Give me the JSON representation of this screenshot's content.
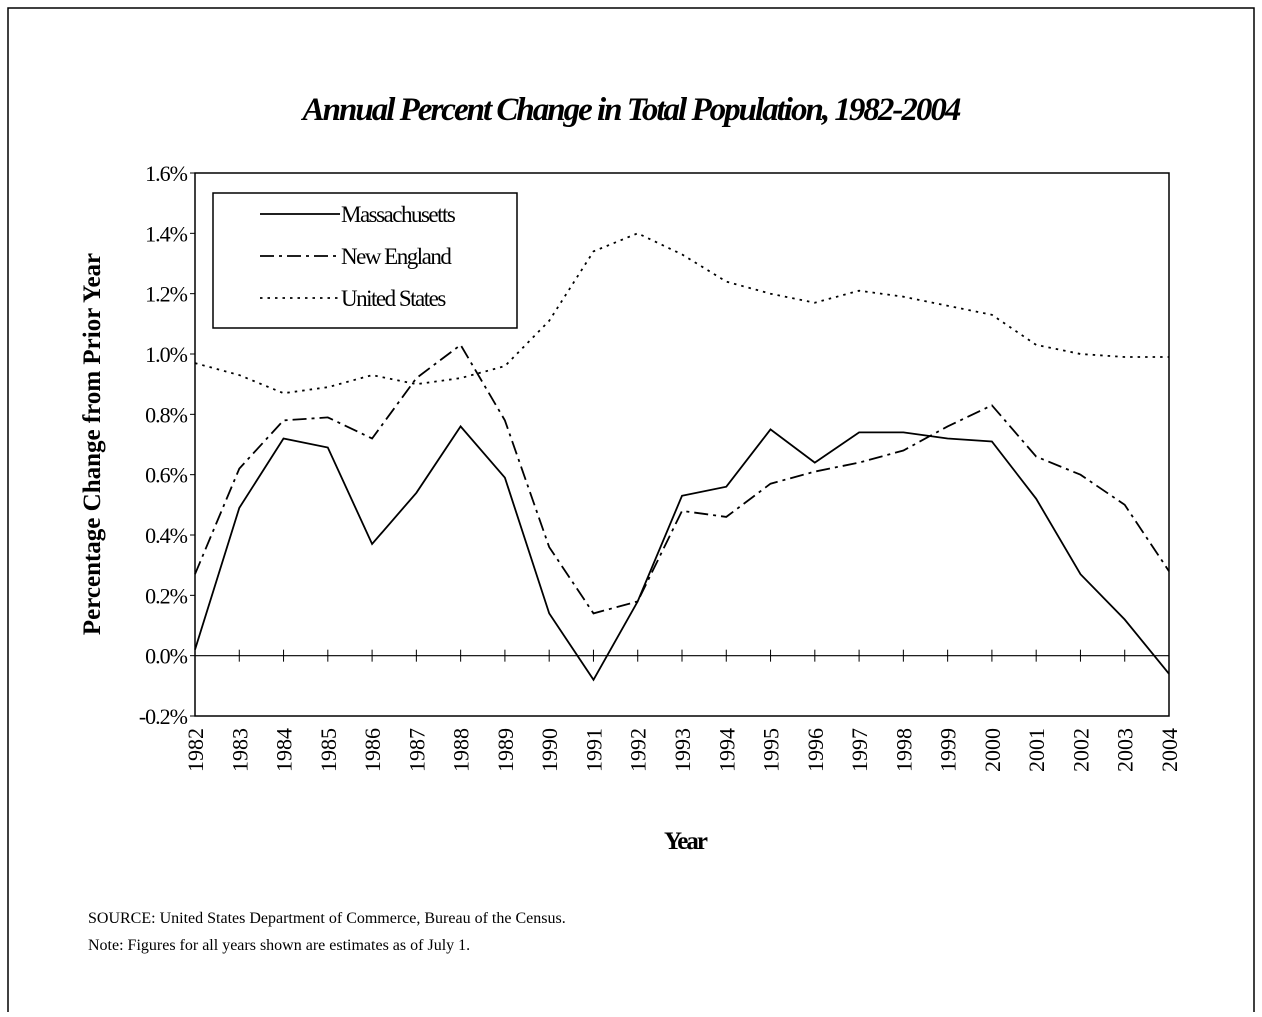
{
  "chart_data": {
    "type": "line",
    "title": "Annual Percent Change in Total Population, 1982-2004",
    "x_label": "Year",
    "y_label": "Percentage Change from Prior Year",
    "categories": [
      "1982",
      "1983",
      "1984",
      "1985",
      "1986",
      "1987",
      "1988",
      "1989",
      "1990",
      "1991",
      "1992",
      "1993",
      "1994",
      "1995",
      "1996",
      "1997",
      "1998",
      "1999",
      "2000",
      "2001",
      "2002",
      "2003",
      "2004"
    ],
    "series": [
      {
        "name": "Massachusetts",
        "color": "#000000",
        "dash": "solid",
        "values": [
          0.02,
          0.49,
          0.72,
          0.69,
          0.37,
          0.54,
          0.76,
          0.59,
          0.14,
          -0.08,
          0.18,
          0.53,
          0.56,
          0.75,
          0.64,
          0.74,
          0.74,
          0.72,
          0.71,
          0.52,
          0.27,
          0.12,
          -0.06
        ]
      },
      {
        "name": "New England",
        "color": "#000000",
        "dash": "dashdot",
        "values": [
          0.27,
          0.62,
          0.78,
          0.79,
          0.72,
          0.92,
          1.03,
          0.78,
          0.36,
          0.14,
          0.18,
          0.48,
          0.46,
          0.57,
          0.61,
          0.64,
          0.68,
          0.76,
          0.83,
          0.66,
          0.6,
          0.5,
          0.28
        ]
      },
      {
        "name": "United States",
        "color": "#000000",
        "dash": "dotted",
        "values": [
          0.97,
          0.93,
          0.87,
          0.89,
          0.93,
          0.9,
          0.92,
          0.96,
          1.11,
          1.34,
          1.4,
          1.33,
          1.24,
          1.2,
          1.17,
          1.21,
          1.19,
          1.16,
          1.13,
          1.03,
          1.0,
          0.99,
          0.99
        ]
      }
    ],
    "ylim": [
      -0.2,
      1.6
    ],
    "yticks": [
      {
        "value": -0.2,
        "label": "-0.2%"
      },
      {
        "value": 0,
        "label": "0.0%"
      },
      {
        "value": 0.2,
        "label": "0.2%"
      },
      {
        "value": 0.4,
        "label": "0.4%"
      },
      {
        "value": 0.6,
        "label": "0.6%"
      },
      {
        "value": 0.8,
        "label": "0.8%"
      },
      {
        "value": 1.0,
        "label": "1.0%"
      },
      {
        "value": 1.2,
        "label": "1.2%"
      },
      {
        "value": 1.4,
        "label": "1.4%"
      },
      {
        "value": 1.6,
        "label": "1.6%"
      }
    ],
    "grid": false,
    "legend": "upper left",
    "notes": [
      "SOURCE:  United States Department of Commerce, Bureau of the Census.",
      "Note:  Figures for all years shown are estimates as of July 1."
    ]
  }
}
